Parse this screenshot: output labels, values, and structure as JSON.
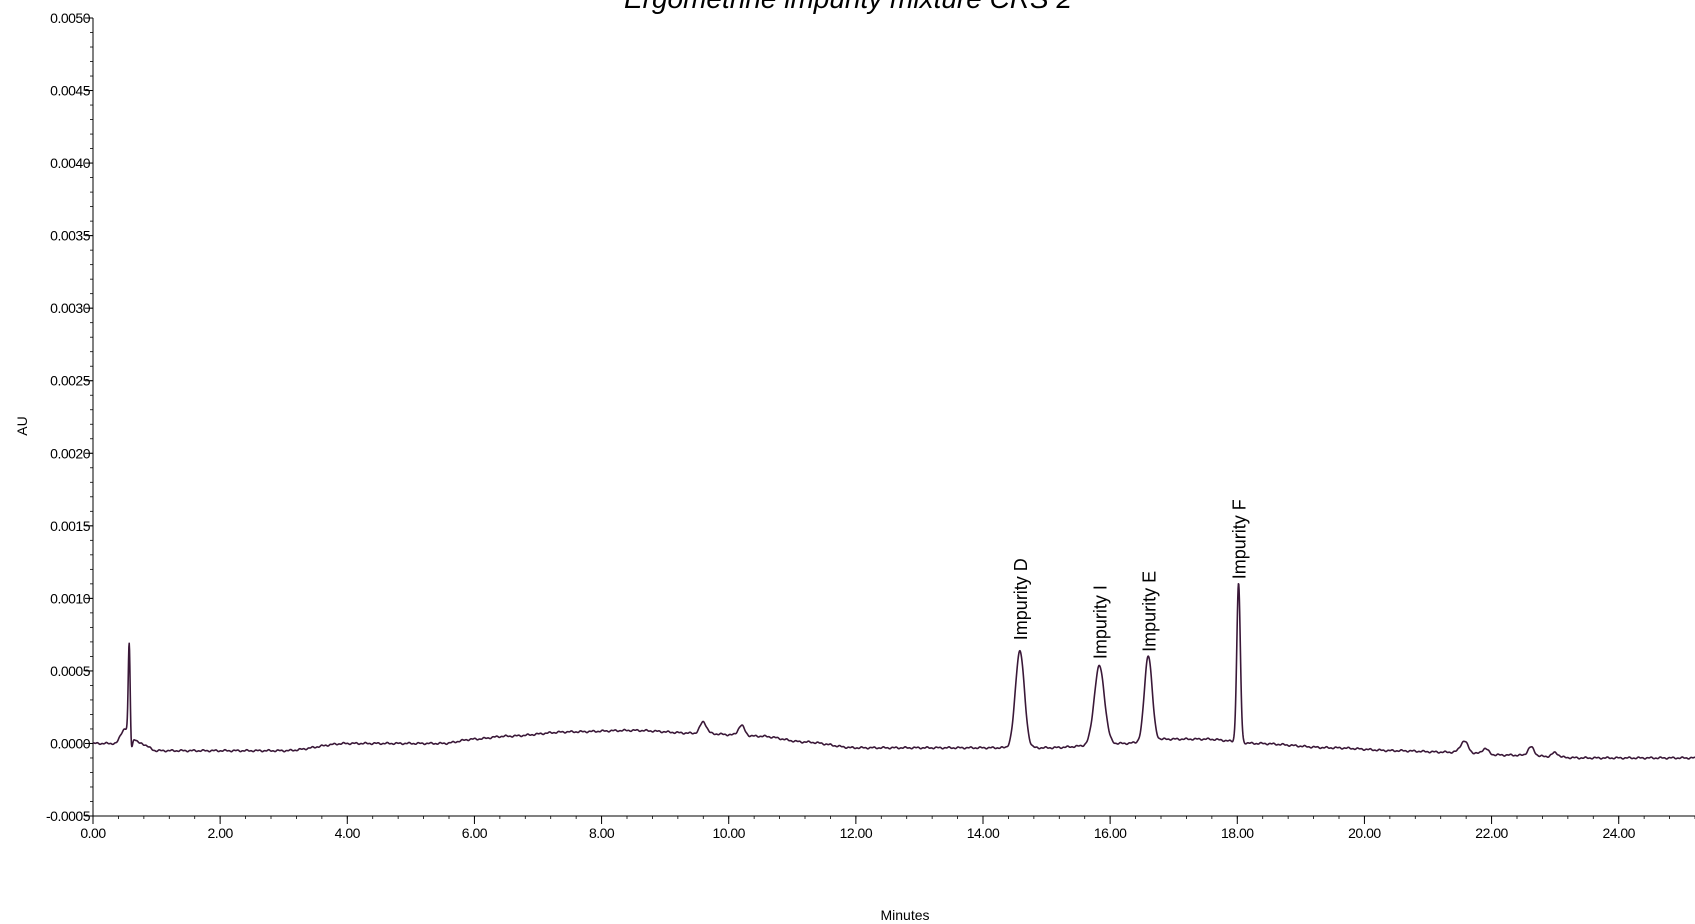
{
  "chart_data": {
    "type": "line",
    "title": "Ergometrine impurity mixture CRS 2",
    "xlabel": "Minutes",
    "ylabel": "AU",
    "xlim": [
      0,
      25.2
    ],
    "ylim": [
      -0.0005,
      0.005
    ],
    "x_ticks": [
      "0.00",
      "2.00",
      "4.00",
      "6.00",
      "8.00",
      "10.00",
      "12.00",
      "14.00",
      "16.00",
      "18.00",
      "20.00",
      "22.00",
      "24.00"
    ],
    "y_ticks": [
      "-0.0005",
      "0.0000",
      "0.0005",
      "0.0010",
      "0.0015",
      "0.0020",
      "0.0025",
      "0.0030",
      "0.0035",
      "0.0040",
      "0.0045",
      "0.0050"
    ],
    "line_color": "#3a1838",
    "baseline": [
      [
        0.0,
        0.0
      ],
      [
        0.35,
        0.0
      ],
      [
        0.5,
        0.0001
      ],
      [
        0.75,
        0.0
      ],
      [
        1.0,
        -5e-05
      ],
      [
        3.0,
        -5e-05
      ],
      [
        4.0,
        0.0
      ],
      [
        5.5,
        0.0
      ],
      [
        6.0,
        3e-05
      ],
      [
        6.5,
        5e-05
      ],
      [
        7.5,
        8e-05
      ],
      [
        8.5,
        9e-05
      ],
      [
        9.5,
        7e-05
      ],
      [
        10.5,
        5e-05
      ],
      [
        11.2,
        1e-05
      ],
      [
        12.0,
        -3e-05
      ],
      [
        13.5,
        -3e-05
      ],
      [
        14.3,
        -3e-05
      ],
      [
        15.0,
        -3e-05
      ],
      [
        16.2,
        0.0
      ],
      [
        16.9,
        3e-05
      ],
      [
        17.5,
        3e-05
      ],
      [
        18.3,
        0.0
      ],
      [
        19.5,
        -3e-05
      ],
      [
        20.5,
        -5e-05
      ],
      [
        21.3,
        -6e-05
      ],
      [
        22.2,
        -8e-05
      ],
      [
        23.5,
        -0.0001
      ],
      [
        24.5,
        -0.0001
      ],
      [
        25.2,
        -0.0001
      ]
    ],
    "peaks": [
      {
        "rt": 0.57,
        "height": 0.00064,
        "width": 0.015,
        "labeled": false
      },
      {
        "rt": 0.6,
        "height": -0.00011,
        "width": 0.02,
        "labeled": false
      },
      {
        "rt": 9.6,
        "height": 8e-05,
        "width": 0.05,
        "labeled": false
      },
      {
        "rt": 10.2,
        "height": 7e-05,
        "width": 0.05,
        "labeled": false
      },
      {
        "rt": 14.58,
        "height": 0.00067,
        "width": 0.07,
        "labeled": true
      },
      {
        "rt": 15.83,
        "height": 0.00054,
        "width": 0.08,
        "labeled": true
      },
      {
        "rt": 16.6,
        "height": 0.00059,
        "width": 0.06,
        "labeled": true
      },
      {
        "rt": 18.02,
        "height": 0.00109,
        "width": 0.028,
        "labeled": true
      },
      {
        "rt": 21.57,
        "height": 8e-05,
        "width": 0.06,
        "labeled": false
      },
      {
        "rt": 21.9,
        "height": 4e-05,
        "width": 0.05,
        "labeled": false
      },
      {
        "rt": 22.62,
        "height": 6e-05,
        "width": 0.05,
        "labeled": false
      },
      {
        "rt": 23.0,
        "height": 3e-05,
        "width": 0.05,
        "labeled": false
      }
    ],
    "peak_labels": [
      {
        "text": "Impurity D",
        "rt": 14.58,
        "value": 0.00067
      },
      {
        "text": "Impurity I",
        "rt": 15.83,
        "value": 0.00054
      },
      {
        "text": "Impurity E",
        "rt": 16.6,
        "value": 0.00059
      },
      {
        "text": "Impurity F",
        "rt": 18.02,
        "value": 0.00109
      }
    ]
  }
}
